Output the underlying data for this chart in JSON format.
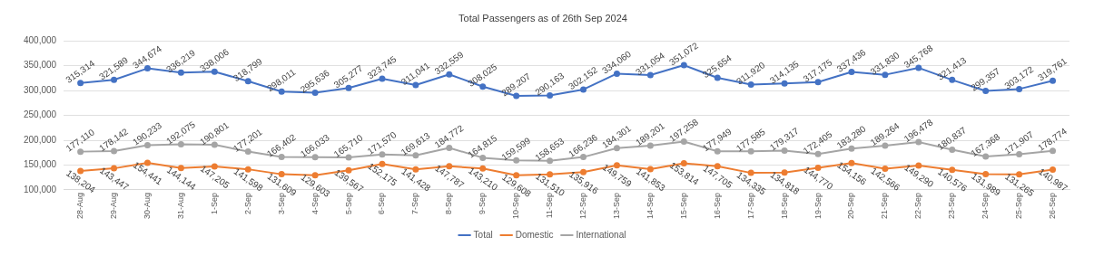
{
  "chart_data": {
    "type": "line",
    "title": "Total Passengers as of 26th Sep 2024",
    "categories": [
      "28-Aug",
      "29-Aug",
      "30-Aug",
      "31-Aug",
      "1-Sep",
      "2-Sep",
      "3-Sep",
      "4-Sep",
      "5-Sep",
      "6-Sep",
      "7-Sep",
      "8-Sep",
      "9-Sep",
      "10-Sep",
      "11-Sep",
      "12-Sep",
      "13-Sep",
      "14-Sep",
      "15-Sep",
      "16-Sep",
      "17-Sep",
      "18-Sep",
      "19-Sep",
      "20-Sep",
      "21-Sep",
      "22-Sep",
      "23-Sep",
      "24-Sep",
      "25-Sep",
      "26-Sep"
    ],
    "series": [
      {
        "name": "Total",
        "color": "#4472c4",
        "values": [
          315314,
          321589,
          344674,
          336219,
          338006,
          318799,
          298011,
          295636,
          305277,
          323745,
          311041,
          332559,
          308025,
          289207,
          290163,
          302152,
          334060,
          331054,
          351072,
          325654,
          311920,
          314135,
          317175,
          337436,
          331830,
          345768,
          321413,
          299357,
          303172,
          319761
        ],
        "value_labels": [
          "315,314",
          "321,589",
          "344,674",
          "336,219",
          "338,006",
          "318,799",
          "298,011",
          "295,636",
          "305,277",
          "323,745",
          "311,041",
          "332,559",
          "308,025",
          "289,207",
          "290,163",
          "302,152",
          "334,060",
          "331,054",
          "351,072",
          "325,654",
          "311,920",
          "314,135",
          "317,175",
          "337,436",
          "331,830",
          "345,768",
          "321,413",
          "299,357",
          "303,172",
          "319,761"
        ]
      },
      {
        "name": "Domestic",
        "color": "#ed7d31",
        "values": [
          138204,
          143447,
          154441,
          144144,
          147205,
          141598,
          131609,
          129603,
          139567,
          152175,
          141428,
          147787,
          143210,
          129608,
          131510,
          135916,
          149759,
          141853,
          153814,
          147705,
          134335,
          134818,
          144770,
          154156,
          142566,
          149290,
          140576,
          131989,
          131265,
          140987
        ],
        "value_labels": [
          "138,204",
          "143,447",
          "154,441",
          "144,144",
          "147,205",
          "141,598",
          "131,609",
          "129,603",
          "139,567",
          "152,175",
          "141,428",
          "147,787",
          "143,210",
          "129,608",
          "131,510",
          "135,916",
          "149,759",
          "141,853",
          "153,814",
          "147,705",
          "134,335",
          "134,818",
          "144,770",
          "154,156",
          "142,566",
          "149,290",
          "140,576",
          "131,989",
          "131,265",
          "140,987"
        ]
      },
      {
        "name": "International",
        "color": "#a5a5a5",
        "values": [
          177110,
          178142,
          190233,
          192075,
          190801,
          177201,
          166402,
          166033,
          165710,
          171570,
          169613,
          184772,
          164815,
          159599,
          158653,
          166236,
          184301,
          189201,
          197258,
          177949,
          177585,
          179317,
          172405,
          183280,
          189264,
          196478,
          180837,
          167368,
          171907,
          178774
        ],
        "value_labels": [
          "177,110",
          "178,142",
          "190,233",
          "192,075",
          "190,801",
          "177,201",
          "166,402",
          "166,033",
          "165,710",
          "171,570",
          "169,613",
          "184,772",
          "164,815",
          "159,599",
          "158,653",
          "166,236",
          "184,301",
          "189,201",
          "197,258",
          "177,949",
          "177,585",
          "179,317",
          "172,405",
          "183,280",
          "189,264",
          "196,478",
          "180,837",
          "167,368",
          "171,907",
          "178,774"
        ]
      }
    ],
    "ylim": [
      100000,
      400000
    ],
    "yticks": [
      {
        "value": 100000,
        "label": "100,000"
      },
      {
        "value": 150000,
        "label": "150,000"
      },
      {
        "value": 200000,
        "label": "200,000"
      },
      {
        "value": 250000,
        "label": "250,000"
      },
      {
        "value": 300000,
        "label": "300,000"
      },
      {
        "value": 350000,
        "label": "350,000"
      },
      {
        "value": 400000,
        "label": "400,000"
      }
    ],
    "grid": "y",
    "legend": "bottom",
    "marker": "circle",
    "line_style": "solid"
  }
}
